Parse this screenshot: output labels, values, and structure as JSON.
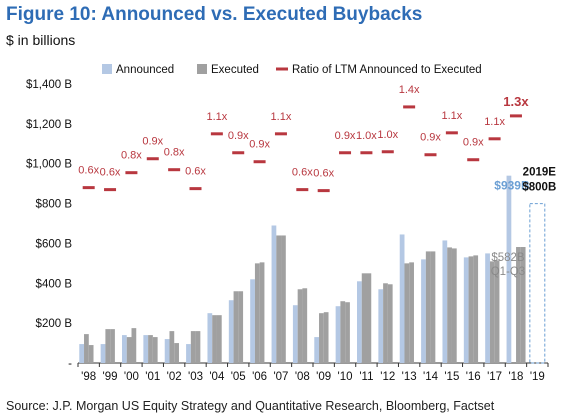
{
  "header": {
    "title": "Figure 10: Announced vs. Executed Buybacks",
    "subtitle": "$ in billions"
  },
  "footer": {
    "source": "Source: J.P. Morgan US Equity Strategy and Quantitative Research, Bloomberg, Factset"
  },
  "colors": {
    "title": "#2e6cb5",
    "announced": "#b4c8e4",
    "executed": "#a0a0a0",
    "ratio": "#b8373f",
    "highlight_label": "#6b9fd4",
    "executed_label": "#8a8a8a"
  },
  "chart_data": {
    "type": "bar",
    "ylim": [
      0,
      1400
    ],
    "yticks": [
      0,
      200,
      400,
      600,
      800,
      1000,
      1200,
      1400
    ],
    "ytick_labels": [
      "-",
      "$200 B",
      "$400 B",
      "$600 B",
      "$800 B",
      "$1,000 B",
      "$1,200 B",
      "$1,400 B"
    ],
    "categories": [
      "'98",
      "'99",
      "'00",
      "'01",
      "'02",
      "'03",
      "'04",
      "'05",
      "'06",
      "'07",
      "'08",
      "'09",
      "'10",
      "'11",
      "'12",
      "'13",
      "'14",
      "'15",
      "'16",
      "'17",
      "'18",
      "'19"
    ],
    "legend": {
      "announced": "Announced",
      "executed": "Executed",
      "ratio": "Ratio of LTM Announced to Executed"
    },
    "announced_h1": [
      95,
      95,
      140,
      140,
      120,
      95,
      250,
      315,
      420,
      690,
      290,
      130,
      285,
      410,
      370,
      645,
      520,
      615,
      530,
      550,
      940,
      null
    ],
    "announced_h2": [
      90,
      170,
      175,
      130,
      100,
      160,
      240,
      360,
      505,
      640,
      375,
      255,
      305,
      450,
      395,
      505,
      560,
      575,
      540,
      515,
      582,
      null
    ],
    "executed_h1": [
      145,
      170,
      130,
      140,
      160,
      160,
      240,
      360,
      500,
      640,
      370,
      250,
      310,
      450,
      400,
      500,
      560,
      580,
      535,
      510,
      null,
      null
    ],
    "executed_h2": [
      null,
      null,
      null,
      null,
      null,
      null,
      null,
      null,
      null,
      null,
      null,
      null,
      null,
      null,
      null,
      null,
      null,
      null,
      null,
      null,
      582,
      null
    ],
    "ratio_values": [
      880,
      870,
      955,
      1025,
      970,
      875,
      1150,
      1055,
      1010,
      1150,
      870,
      865,
      1055,
      1055,
      1060,
      1285,
      1045,
      1155,
      1020,
      1125,
      1240,
      null
    ],
    "ratio_labels": [
      "0.6x",
      "0.6x",
      "0.8x",
      "0.9x",
      "0.8x",
      "0.6x",
      "1.1x",
      "0.9x",
      "0.9x",
      "1.1x",
      "0.6x",
      "0.6x",
      "0.9x",
      "1.0x",
      "1.0x",
      "1.4x",
      "0.9x",
      "1.1x",
      "0.9x",
      "1.1x",
      "1.3x",
      ""
    ],
    "annotations": {
      "announced_2018": "$939B",
      "executed_2018": "$582B",
      "executed_2018_period": "Q1-Q3",
      "estimate_year": "2019E",
      "estimate_value": "$800B"
    },
    "estimate_2019": 800
  }
}
